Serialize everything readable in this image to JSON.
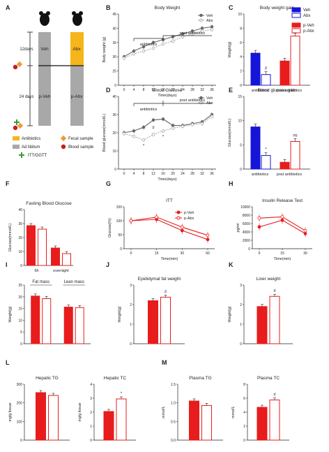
{
  "colors": {
    "veh": "#1515d8",
    "abx": "#1515d8",
    "pveh": "#e81c1c",
    "pabx": "#e81c1c",
    "gray": "#777777",
    "abxbox": "#f5b51b",
    "vehbox": "#a8a8a8",
    "adlib": "#a8a8a8"
  },
  "panelA": {
    "letter": "A",
    "veh_label": "Veh",
    "abx_label": "Abx",
    "pveh_label": "p-Veh",
    "pabx_label": "p-Abx",
    "days12": "12days",
    "days24": "24 days",
    "legend": [
      "Antibiotics",
      "Fecal sample",
      "Ad libitum",
      "Blood sample",
      "ITT/OGTT"
    ]
  },
  "chart_data": [
    {
      "id": "B",
      "letter": "B",
      "type": "line",
      "title": "Body Weight",
      "xlabel": "Time(days)",
      "ylabel": "Body weight (g)",
      "x": [
        0,
        4,
        8,
        12,
        16,
        20,
        24,
        28,
        32,
        36
      ],
      "xticks": [
        "0",
        "4",
        "8",
        "12",
        "16",
        "20",
        "24",
        "28",
        "32",
        "36"
      ],
      "ylim": [
        0,
        45
      ],
      "yticks": [
        "0",
        "25",
        "30",
        "35",
        "40",
        "45"
      ],
      "series": [
        {
          "name": "Veh",
          "values": [
            30,
            32,
            33.5,
            35,
            36,
            37,
            38,
            39,
            40,
            40.5
          ]
        },
        {
          "name": "Abx",
          "values": [
            29.5,
            31,
            32,
            33,
            34.5,
            35.5,
            37,
            38,
            39,
            39.5
          ]
        }
      ],
      "annotations": [
        "antibiotics",
        "post antibiotics"
      ]
    },
    {
      "id": "C",
      "letter": "C",
      "type": "bar",
      "title": "Body weight gain",
      "ylabel": "Weight(g)",
      "ylim": [
        0,
        10
      ],
      "yticks": [
        "0",
        "2",
        "4",
        "6",
        "8",
        "10"
      ],
      "categories": [
        "antibiotics",
        "post antibiotics"
      ],
      "series": [
        {
          "name": "Veh",
          "values": [
            4.5,
            null
          ]
        },
        {
          "name": "Abx",
          "values": [
            1.5,
            null
          ]
        },
        {
          "name": "p-Veh",
          "values": [
            null,
            3.4
          ]
        },
        {
          "name": "p-Abx",
          "values": [
            null,
            6.9
          ]
        }
      ],
      "marks": [
        "#",
        "#"
      ]
    },
    {
      "id": "D",
      "letter": "D",
      "type": "line",
      "title": "Blood Glucose",
      "xlabel": "Time(days)",
      "ylabel": "Blood glucose(mmol/L)",
      "x": [
        0,
        4,
        8,
        12,
        16,
        20,
        24,
        28,
        32,
        36
      ],
      "xticks": [
        "0",
        "4",
        "8",
        "12",
        "16",
        "20",
        "24",
        "28",
        "32",
        "36"
      ],
      "ylim": [
        0,
        40
      ],
      "yticks": [
        "0",
        "10",
        "20",
        "30",
        "40"
      ],
      "series": [
        {
          "name": "Veh",
          "values": [
            20,
            21,
            23,
            27,
            27.5,
            24,
            24,
            25,
            26,
            30
          ]
        },
        {
          "name": "Abx",
          "values": [
            19.5,
            18,
            16,
            19,
            21,
            22.5,
            23.5,
            24.5,
            25,
            29
          ]
        }
      ],
      "annotations": [
        "antibiotics",
        "post antibiotics"
      ],
      "marks": [
        "*",
        "#",
        "*"
      ]
    },
    {
      "id": "E",
      "letter": "E",
      "type": "bar",
      "title": "Blood glucose gain",
      "ylabel": "Glucose(mmol/L)",
      "ylim": [
        0,
        15
      ],
      "yticks": [
        "0",
        "5",
        "10",
        "15"
      ],
      "categories": [
        "antibiotics",
        "post antibiotics"
      ],
      "series": [
        {
          "name": "Veh",
          "values": [
            8.7,
            null
          ]
        },
        {
          "name": "Abx",
          "values": [
            2.8,
            null
          ]
        },
        {
          "name": "p-Veh",
          "values": [
            null,
            1.4
          ]
        },
        {
          "name": "p-Abx",
          "values": [
            null,
            5.7
          ]
        }
      ],
      "marks": [
        "*",
        "ns"
      ]
    },
    {
      "id": "F",
      "letter": "F",
      "type": "bar",
      "title": "Fasting Blood Glucose",
      "ylabel": "Glucose(mmol/L)",
      "ylim": [
        0,
        40
      ],
      "yticks": [
        "0",
        "10",
        "20",
        "30",
        "40"
      ],
      "categories": [
        "6h",
        "overnight"
      ],
      "series": [
        {
          "name": "p-Veh",
          "values": [
            28.5,
            12.5
          ]
        },
        {
          "name": "p-Abx",
          "values": [
            26,
            8.5
          ]
        }
      ]
    },
    {
      "id": "G",
      "letter": "G",
      "type": "line",
      "title": "ITT",
      "xlabel": "Time(min)",
      "ylabel": "Glucose(%)",
      "xticks": [
        "0",
        "15",
        "30",
        "60"
      ],
      "ylim": [
        0,
        150
      ],
      "yticks": [
        "0",
        "50",
        "100",
        "150"
      ],
      "series": [
        {
          "name": "p-Veh",
          "values": [
            100,
            105,
            65,
            33
          ]
        },
        {
          "name": "p-Abx",
          "values": [
            100,
            113,
            77,
            48
          ]
        }
      ]
    },
    {
      "id": "H",
      "letter": "H",
      "type": "line",
      "title": "Insulin Release Test",
      "xlabel": "Time(min)",
      "ylabel": "pg/ml",
      "xticks": [
        "0",
        "15",
        "30"
      ],
      "ylim": [
        0,
        10000
      ],
      "yticks": [
        "0",
        "2000",
        "4000",
        "6000",
        "8000",
        "10000"
      ],
      "series": [
        {
          "name": "p-Veh",
          "values": [
            5200,
            6800,
            3600
          ]
        },
        {
          "name": "p-Abx",
          "values": [
            7300,
            7600,
            4300
          ]
        }
      ]
    },
    {
      "id": "I",
      "letter": "I",
      "type": "bar",
      "ylabel": "Weight(g)",
      "ylim": [
        0,
        25
      ],
      "yticks": [
        "0",
        "5",
        "10",
        "15",
        "20",
        "25"
      ],
      "categories": [
        "Fat mass",
        "Lean mass"
      ],
      "series": [
        {
          "name": "p-Veh",
          "values": [
            20.3,
            15.6
          ]
        },
        {
          "name": "p-Abx",
          "values": [
            19.2,
            15.4
          ]
        }
      ]
    },
    {
      "id": "J",
      "letter": "J",
      "type": "bar",
      "title": "Epididymal fat weight",
      "ylabel": "Weight(g)",
      "ylim": [
        0,
        3
      ],
      "yticks": [
        "0",
        "1",
        "2",
        "3"
      ],
      "categories": [
        ""
      ],
      "series": [
        {
          "name": "p-Veh",
          "values": [
            2.2
          ]
        },
        {
          "name": "p-Abx",
          "values": [
            2.38
          ]
        }
      ],
      "marks": [
        "#"
      ]
    },
    {
      "id": "K",
      "letter": "K",
      "type": "bar",
      "title": "Liver weight",
      "ylabel": "Weight(g)",
      "ylim": [
        0,
        3
      ],
      "yticks": [
        "0",
        "1",
        "2",
        "3"
      ],
      "categories": [
        ""
      ],
      "series": [
        {
          "name": "p-Veh",
          "values": [
            1.9
          ]
        },
        {
          "name": "p-Abx",
          "values": [
            2.42
          ]
        }
      ],
      "marks": [
        "#"
      ]
    },
    {
      "id": "L1",
      "letter": "L",
      "type": "bar",
      "title": "Hepatic TG",
      "ylabel": "mg/g tissue",
      "ylim": [
        0,
        300
      ],
      "yticks": [
        "0",
        "100",
        "200",
        "300"
      ],
      "categories": [
        ""
      ],
      "series": [
        {
          "name": "p-Veh",
          "values": [
            255
          ]
        },
        {
          "name": "p-Abx",
          "values": [
            240
          ]
        }
      ]
    },
    {
      "id": "L2",
      "letter": "",
      "type": "bar",
      "title": "Hepatic TC",
      "ylabel": "mg/g tissue",
      "ylim": [
        0,
        4
      ],
      "yticks": [
        "0",
        "1",
        "2",
        "3",
        "4"
      ],
      "categories": [
        ""
      ],
      "series": [
        {
          "name": "p-Veh",
          "values": [
            2.05
          ]
        },
        {
          "name": "p-Abx",
          "values": [
            2.95
          ]
        }
      ],
      "marks": [
        "*"
      ]
    },
    {
      "id": "M1",
      "letter": "M",
      "type": "bar",
      "title": "Plasma TG",
      "ylabel": "mmol/L",
      "ylim": [
        0,
        1.5
      ],
      "yticks": [
        "0.0",
        "0.5",
        "1.0",
        "1.5"
      ],
      "categories": [
        ""
      ],
      "series": [
        {
          "name": "p-Veh",
          "values": [
            1.05
          ]
        },
        {
          "name": "p-Abx",
          "values": [
            0.93
          ]
        }
      ]
    },
    {
      "id": "M2",
      "letter": "",
      "type": "bar",
      "title": "Plasma TC",
      "ylabel": "mmol/L",
      "ylim": [
        0,
        8
      ],
      "yticks": [
        "0",
        "2",
        "4",
        "6",
        "8"
      ],
      "categories": [
        ""
      ],
      "series": [
        {
          "name": "p-Veh",
          "values": [
            4.7
          ]
        },
        {
          "name": "p-Abx",
          "values": [
            5.75
          ]
        }
      ],
      "marks": [
        "#"
      ]
    }
  ]
}
